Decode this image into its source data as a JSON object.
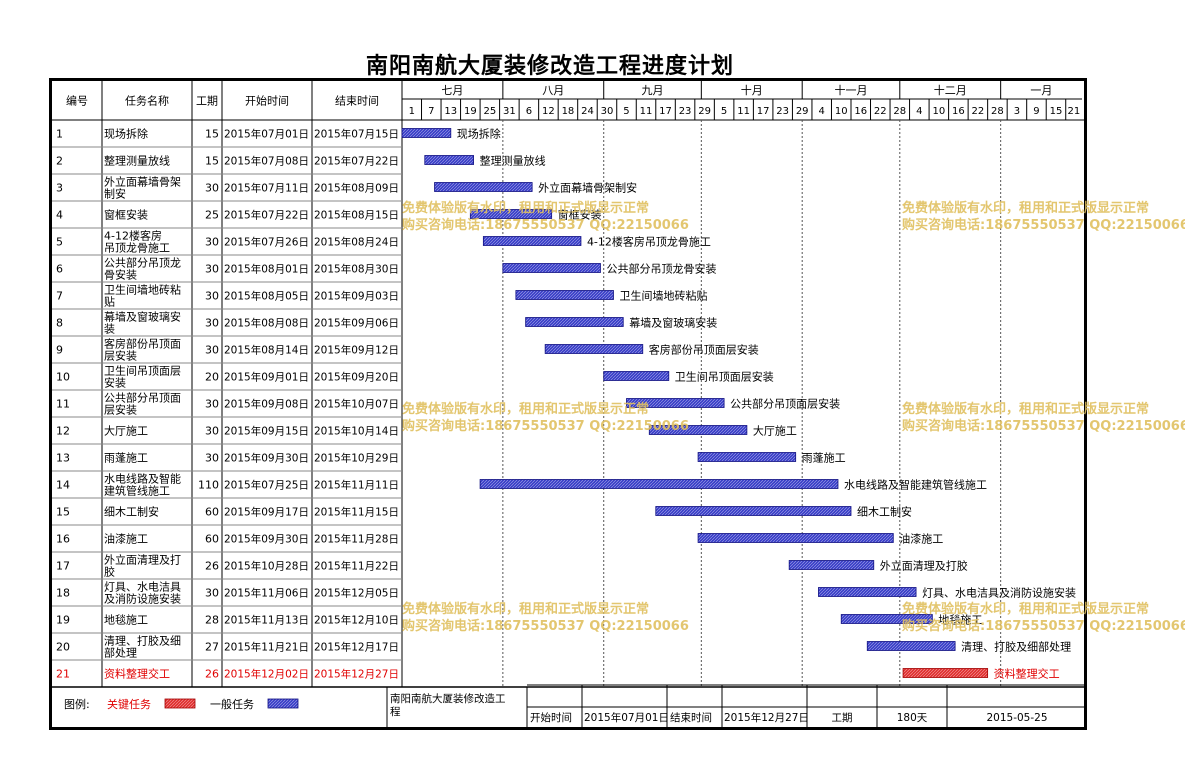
{
  "title": "南阳南航大厦装修改造工程进度计划",
  "headers": {
    "id": "编号",
    "name": "任务名称",
    "duration": "工期",
    "start": "开始时间",
    "end": "结束时间"
  },
  "months": [
    "七月",
    "八月",
    "九月",
    "十月",
    "十一月",
    "十二月",
    "一月"
  ],
  "day_ticks": [
    "1",
    "7",
    "13",
    "19",
    "25",
    "31",
    "6",
    "12",
    "18",
    "24",
    "30",
    "5",
    "11",
    "17",
    "23",
    "29",
    "5",
    "11",
    "17",
    "23",
    "29",
    "4",
    "10",
    "16",
    "22",
    "28",
    "4",
    "10",
    "16",
    "22",
    "28",
    "3",
    "9",
    "15",
    "21"
  ],
  "colors": {
    "normal_fill": "#3a3fc8",
    "critical_fill": "#e03030",
    "critical_text": "#e00000",
    "watermark": "#e0c060"
  },
  "chart_data": {
    "type": "gantt",
    "title": "南阳南航大厦装修改造工程进度计划",
    "x_range": [
      "2015-07-01",
      "2016-01-26"
    ],
    "tasks": [
      {
        "id": "1",
        "name": "现场拆除",
        "bar_label": "现场拆除",
        "duration": "15",
        "start": "2015年07月01日",
        "end": "2015年07月15日",
        "s": "2015-07-01",
        "e": "2015-07-15",
        "critical": false
      },
      {
        "id": "2",
        "name": "整理测量放线",
        "bar_label": "整理测量放线",
        "duration": "15",
        "start": "2015年07月08日",
        "end": "2015年07月22日",
        "s": "2015-07-08",
        "e": "2015-07-22",
        "critical": false
      },
      {
        "id": "3",
        "name": "外立面幕墙骨架制安",
        "bar_label": "外立面幕墙骨架制安",
        "duration": "30",
        "start": "2015年07月11日",
        "end": "2015年08月09日",
        "s": "2015-07-11",
        "e": "2015-08-09",
        "critical": false
      },
      {
        "id": "4",
        "name": "窗框安装",
        "bar_label": "窗框安装",
        "duration": "25",
        "start": "2015年07月22日",
        "end": "2015年08月15日",
        "s": "2015-07-22",
        "e": "2015-08-15",
        "critical": false
      },
      {
        "id": "5",
        "name": "4-12楼客房吊顶龙骨施工",
        "bar_label": "4-12楼客房吊顶龙骨施工",
        "duration": "30",
        "start": "2015年07月26日",
        "end": "2015年08月24日",
        "s": "2015-07-26",
        "e": "2015-08-24",
        "critical": false
      },
      {
        "id": "6",
        "name": "公共部分吊顶龙骨安装",
        "bar_label": "公共部分吊顶龙骨安装",
        "duration": "30",
        "start": "2015年08月01日",
        "end": "2015年08月30日",
        "s": "2015-08-01",
        "e": "2015-08-30",
        "critical": false
      },
      {
        "id": "7",
        "name": "卫生间墙地砖粘贴",
        "bar_label": "卫生间墙地砖粘贴",
        "duration": "30",
        "start": "2015年08月05日",
        "end": "2015年09月03日",
        "s": "2015-08-05",
        "e": "2015-09-03",
        "critical": false
      },
      {
        "id": "8",
        "name": "幕墙及窗玻璃安装",
        "bar_label": "幕墙及窗玻璃安装",
        "duration": "30",
        "start": "2015年08月08日",
        "end": "2015年09月06日",
        "s": "2015-08-08",
        "e": "2015-09-06",
        "critical": false
      },
      {
        "id": "9",
        "name": "客房部份吊顶面层安装",
        "bar_label": "客房部份吊顶面层安装",
        "duration": "30",
        "start": "2015年08月14日",
        "end": "2015年09月12日",
        "s": "2015-08-14",
        "e": "2015-09-12",
        "critical": false
      },
      {
        "id": "10",
        "name": "卫生间吊顶面层安装",
        "bar_label": "卫生间吊顶面层安装",
        "duration": "20",
        "start": "2015年09月01日",
        "end": "2015年09月20日",
        "s": "2015-09-01",
        "e": "2015-09-20",
        "critical": false
      },
      {
        "id": "11",
        "name": "公共部分吊顶面层安装",
        "bar_label": "公共部分吊顶面层安装",
        "duration": "30",
        "start": "2015年09月08日",
        "end": "2015年10月07日",
        "s": "2015-09-08",
        "e": "2015-10-07",
        "critical": false
      },
      {
        "id": "12",
        "name": "大厅施工",
        "bar_label": "大厅施工",
        "duration": "30",
        "start": "2015年09月15日",
        "end": "2015年10月14日",
        "s": "2015-09-15",
        "e": "2015-10-14",
        "critical": false
      },
      {
        "id": "13",
        "name": "雨蓬施工",
        "bar_label": "雨蓬施工",
        "duration": "30",
        "start": "2015年09月30日",
        "end": "2015年10月29日",
        "s": "2015-09-30",
        "e": "2015-10-29",
        "critical": false
      },
      {
        "id": "14",
        "name": "水电线路及智能建筑管线施工",
        "bar_label": "水电线路及智能建筑管线施工",
        "duration": "110",
        "start": "2015年07月25日",
        "end": "2015年11月11日",
        "s": "2015-07-25",
        "e": "2015-11-11",
        "critical": false
      },
      {
        "id": "15",
        "name": "细木工制安",
        "bar_label": "细木工制安",
        "duration": "60",
        "start": "2015年09月17日",
        "end": "2015年11月15日",
        "s": "2015-09-17",
        "e": "2015-11-15",
        "critical": false
      },
      {
        "id": "16",
        "name": "油漆施工",
        "bar_label": "油漆施工",
        "duration": "60",
        "start": "2015年09月30日",
        "end": "2015年11月28日",
        "s": "2015-09-30",
        "e": "2015-11-28",
        "critical": false
      },
      {
        "id": "17",
        "name": "外立面清理及打胶",
        "bar_label": "外立面清理及打胶",
        "duration": "26",
        "start": "2015年10月28日",
        "end": "2015年11月22日",
        "s": "2015-10-28",
        "e": "2015-11-22",
        "critical": false
      },
      {
        "id": "18",
        "name": "灯具、水电洁具及消防设施安装",
        "bar_label": "灯具、水电洁具及消防设施安装",
        "duration": "30",
        "start": "2015年11月06日",
        "end": "2015年12月05日",
        "s": "2015-11-06",
        "e": "2015-12-05",
        "critical": false
      },
      {
        "id": "19",
        "name": "地毯施工",
        "bar_label": "地毯施工",
        "duration": "28",
        "start": "2015年11月13日",
        "end": "2015年12月10日",
        "s": "2015-11-13",
        "e": "2015-12-10",
        "critical": false
      },
      {
        "id": "20",
        "name": "清理、打胶及细部处理",
        "bar_label": "清理、打胶及细部处理",
        "duration": "27",
        "start": "2015年11月21日",
        "end": "2015年12月17日",
        "s": "2015-11-21",
        "e": "2015-12-17",
        "critical": false
      },
      {
        "id": "21",
        "name": "资料整理交工",
        "bar_label": "资料整理交工",
        "duration": "26",
        "start": "2015年12月02日",
        "end": "2015年12月27日",
        "s": "2015-12-02",
        "e": "2015-12-27",
        "critical": true
      }
    ]
  },
  "footer": {
    "legend_label": "图例:",
    "critical_label": "关键任务",
    "normal_label": "一般任务",
    "project_name": "南阳南航大厦装修改造工程",
    "start_label": "开始时间",
    "start_value": "2015年07月01日",
    "end_label": "结束时间",
    "end_value": "2015年12月27日",
    "duration_label": "工期",
    "duration_value": "180天",
    "date_value": "2015-05-25"
  },
  "watermark": {
    "line1": "免费体验版有水印，租用和正式版显示正常",
    "line2": "购买咨询电话:18675550537 QQ:22150066"
  }
}
